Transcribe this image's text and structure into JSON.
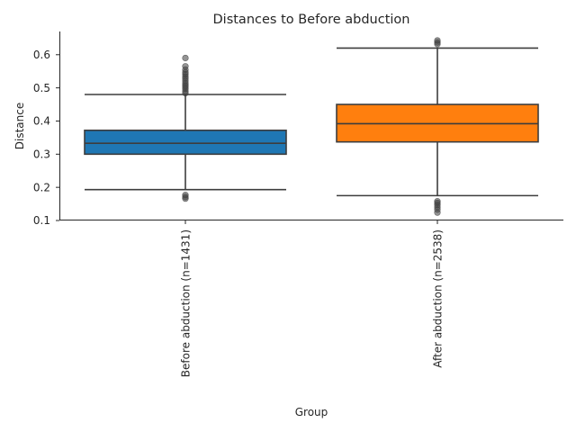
{
  "chart_data": {
    "type": "box",
    "title": "Distances to Before abduction",
    "xlabel": "Group",
    "ylabel": "Distance",
    "ylim": [
      0.1,
      0.67
    ],
    "yticks": [
      0.1,
      0.2,
      0.3,
      0.4,
      0.5,
      0.6
    ],
    "ytick_labels": [
      "0.1",
      "0.2",
      "0.3",
      "0.4",
      "0.5",
      "0.6"
    ],
    "grid": false,
    "categories": [
      "Before abduction (n=1431)",
      "After abduction (n=2538)"
    ],
    "series": [
      {
        "category": "Before abduction (n=1431)",
        "color": "#1f77b4",
        "whisker_low": 0.193,
        "q1": 0.3,
        "median": 0.333,
        "q3": 0.372,
        "whisker_high": 0.48,
        "outliers": [
          0.166,
          0.171,
          0.177,
          0.484,
          0.49,
          0.497,
          0.503,
          0.508,
          0.514,
          0.521,
          0.528,
          0.534,
          0.541,
          0.547,
          0.555,
          0.565,
          0.59
        ]
      },
      {
        "category": "After abduction (n=2538)",
        "color": "#ff7f0e",
        "whisker_low": 0.175,
        "q1": 0.337,
        "median": 0.392,
        "q3": 0.45,
        "whisker_high": 0.62,
        "outliers": [
          0.124,
          0.133,
          0.14,
          0.147,
          0.153,
          0.158,
          0.632,
          0.637,
          0.643
        ]
      }
    ]
  }
}
